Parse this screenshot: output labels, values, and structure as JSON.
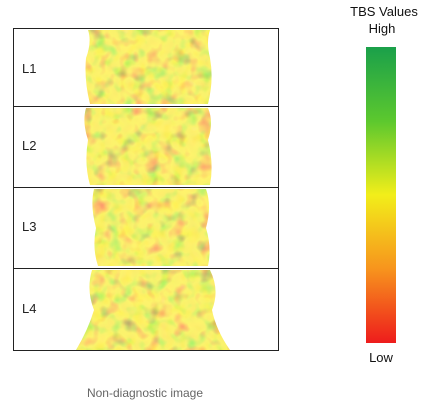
{
  "vertebrae": [
    "L1",
    "L2",
    "L3",
    "L4"
  ],
  "legend": {
    "title": "TBS Values",
    "high": "High",
    "low": "Low"
  },
  "caption": "Non-diagnostic image"
}
